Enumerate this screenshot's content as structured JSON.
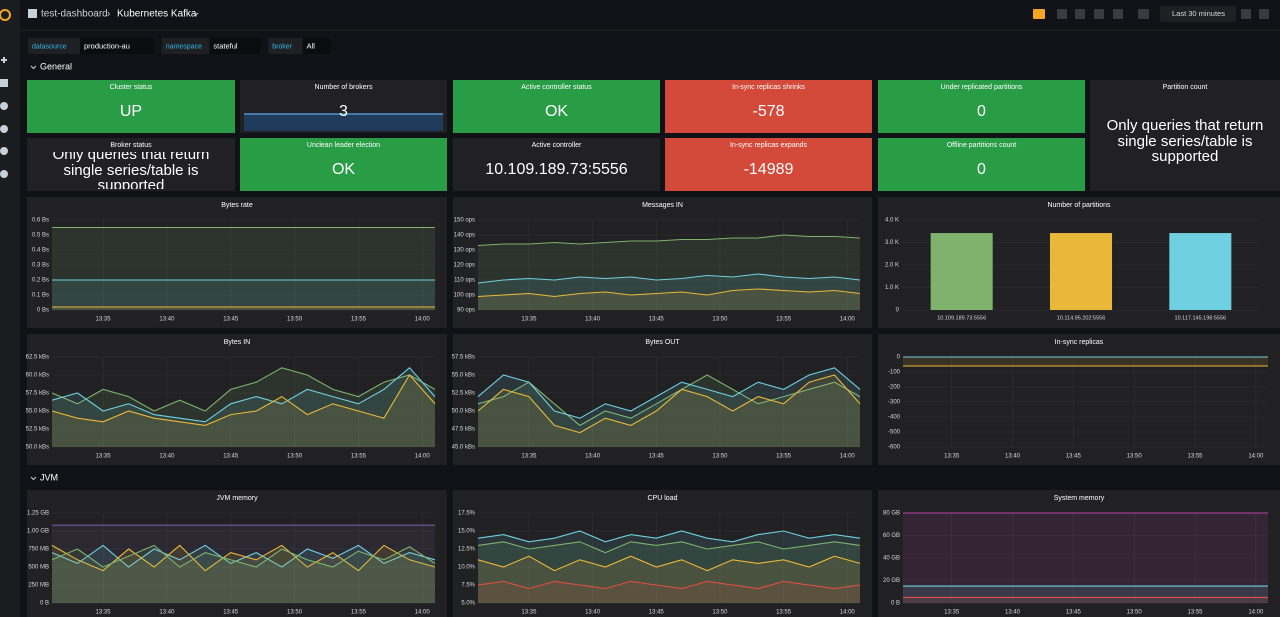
{
  "header": {
    "breadcrumb": "test-dashboard",
    "title": "Kubernetes Kafka",
    "time_range": "Last 30 minutes"
  },
  "variables": [
    {
      "label": "datasource",
      "value": "production-au"
    },
    {
      "label": "namespace",
      "value": "stateful"
    },
    {
      "label": "broker",
      "value": "All"
    }
  ],
  "rows": [
    "General",
    "JVM"
  ],
  "stat_panels": [
    {
      "title": "Cluster status",
      "value": "UP",
      "color": "#299c46"
    },
    {
      "title": "Number of brokers",
      "value": 3,
      "color": "#212124"
    },
    {
      "title": "Active controller status",
      "value": "OK",
      "color": "#299c46"
    },
    {
      "title": "In-sync replicas shrinks",
      "value": -578,
      "color": "#d44a3a"
    },
    {
      "title": "Under replicated partitions",
      "value": 0,
      "color": "#299c46"
    },
    {
      "title": "Partition count",
      "value": "Only queries that return single series/table is supported",
      "color": "#212124"
    },
    {
      "title": "Broker status",
      "value": "Only queries that return single series/table is supported",
      "color": "#212124"
    },
    {
      "title": "Unclean leader election",
      "value": "OK",
      "color": "#299c46"
    },
    {
      "title": "Active controller",
      "value": "10.109.189.73:5556",
      "color": "#212124"
    },
    {
      "title": "In-sync replicas expands",
      "value": -14989,
      "color": "#d44a3a"
    },
    {
      "title": "Offline partitions count",
      "value": 0,
      "color": "#299c46"
    }
  ],
  "chart_data": [
    {
      "type": "line",
      "title": "Bytes rate",
      "fill": true,
      "grid": true,
      "x": [
        "13:31",
        "13:33",
        "13:35",
        "13:37",
        "13:39",
        "13:41",
        "13:43",
        "13:45",
        "13:47",
        "13:49",
        "13:51",
        "13:53",
        "13:55",
        "13:57",
        "13:59",
        "14:01"
      ],
      "xlim": [
        "13:31",
        "14:01"
      ],
      "xticks": [
        "13:35",
        "13:40",
        "13:45",
        "13:50",
        "13:55",
        "14:00"
      ],
      "ylim": [
        0,
        0.6
      ],
      "yticks": [
        {
          "value": 0,
          "label": "0 Bs"
        },
        {
          "value": 0.1,
          "label": "0.1 Bs"
        },
        {
          "value": 0.2,
          "label": "0.2 Bs"
        },
        {
          "value": 0.3,
          "label": "0.3 Bs"
        },
        {
          "value": 0.4,
          "label": "0.4 Bs"
        },
        {
          "value": 0.5,
          "label": "0.5 Bs"
        },
        {
          "value": 0.6,
          "label": "0.6 Bs"
        }
      ],
      "series": [
        {
          "color": "#7eb26d",
          "values": [
            0.55,
            0.55,
            0.55,
            0.55,
            0.55,
            0.55,
            0.55,
            0.55,
            0.55,
            0.55,
            0.55,
            0.55,
            0.55,
            0.55,
            0.55,
            0.55
          ]
        },
        {
          "color": "#6ed0e0",
          "values": [
            0.2,
            0.2,
            0.2,
            0.2,
            0.2,
            0.2,
            0.2,
            0.2,
            0.2,
            0.2,
            0.2,
            0.2,
            0.2,
            0.2,
            0.2,
            0.2
          ]
        },
        {
          "color": "#eab839",
          "values": [
            0.02,
            0.02,
            0.02,
            0.02,
            0.02,
            0.02,
            0.02,
            0.02,
            0.02,
            0.02,
            0.02,
            0.02,
            0.02,
            0.02,
            0.02,
            0.02
          ]
        }
      ]
    },
    {
      "type": "line",
      "title": "Messages IN",
      "fill": true,
      "grid": true,
      "x": [
        "13:31",
        "13:33",
        "13:35",
        "13:37",
        "13:39",
        "13:41",
        "13:43",
        "13:45",
        "13:47",
        "13:49",
        "13:51",
        "13:53",
        "13:55",
        "13:57",
        "13:59",
        "14:01"
      ],
      "xlim": [
        "13:31",
        "14:01"
      ],
      "xticks": [
        "13:35",
        "13:40",
        "13:45",
        "13:50",
        "13:55",
        "14:00"
      ],
      "ylim": [
        90,
        150
      ],
      "yticks": [
        {
          "value": 90,
          "label": "90 ops"
        },
        {
          "value": 100,
          "label": "100 ops"
        },
        {
          "value": 110,
          "label": "110 ops"
        },
        {
          "value": 120,
          "label": "120 ops"
        },
        {
          "value": 130,
          "label": "130 ops"
        },
        {
          "value": 140,
          "label": "140 ops"
        },
        {
          "value": 150,
          "label": "150 ops"
        }
      ],
      "series": [
        {
          "color": "#7eb26d",
          "values": [
            133,
            134,
            134,
            135,
            134,
            135,
            136,
            136,
            137,
            137,
            138,
            138,
            140,
            139,
            139,
            138
          ]
        },
        {
          "color": "#6ed0e0",
          "values": [
            108,
            110,
            111,
            110,
            112,
            111,
            112,
            110,
            111,
            113,
            112,
            114,
            112,
            111,
            112,
            110
          ]
        },
        {
          "color": "#eab839",
          "values": [
            99,
            100,
            101,
            99,
            101,
            102,
            100,
            101,
            102,
            100,
            103,
            104,
            103,
            102,
            103,
            101
          ]
        }
      ]
    },
    {
      "type": "bar",
      "title": "Number of partitions",
      "grid": true,
      "categories": [
        "10.109.189.73:5556",
        "10.114.95.202:5556",
        "10.117.145.198:5556"
      ],
      "values": [
        3420,
        3420,
        3420
      ],
      "colors": [
        "#7eb26d",
        "#eab839",
        "#6ed0e0"
      ],
      "ylim": [
        0,
        4000
      ],
      "yticks": [
        0,
        {
          "value": 1000,
          "label": "1.0 K"
        },
        {
          "value": 2000,
          "label": "2.0 K"
        },
        {
          "value": 3000,
          "label": "3.0 K"
        },
        {
          "value": 4000,
          "label": "4.0 K"
        }
      ]
    },
    {
      "type": "line",
      "title": "Bytes IN",
      "fill": true,
      "grid": true,
      "x": [
        "13:31",
        "13:33",
        "13:35",
        "13:37",
        "13:39",
        "13:41",
        "13:43",
        "13:45",
        "13:47",
        "13:49",
        "13:51",
        "13:53",
        "13:55",
        "13:57",
        "13:59",
        "14:01"
      ],
      "xlim": [
        "13:31",
        "14:01"
      ],
      "xticks": [
        "13:35",
        "13:40",
        "13:45",
        "13:50",
        "13:55",
        "14:00"
      ],
      "ylim": [
        50,
        62.5
      ],
      "yticks": [
        {
          "value": 50,
          "label": "50.0 kBs"
        },
        {
          "value": 52.5,
          "label": "52.5 kBs"
        },
        {
          "value": 55,
          "label": "55.0 kBs"
        },
        {
          "value": 57.5,
          "label": "57.5 kBs"
        },
        {
          "value": 60,
          "label": "60.0 kBs"
        },
        {
          "value": 62.5,
          "label": "62.5 kBs"
        }
      ],
      "series": [
        {
          "color": "#7eb26d",
          "values": [
            57.5,
            56,
            58,
            57,
            55,
            56.5,
            55,
            58,
            59,
            61,
            60,
            58,
            57,
            59,
            60,
            58
          ]
        },
        {
          "color": "#6ed0e0",
          "values": [
            56.5,
            57.5,
            55,
            56,
            54.5,
            54,
            53.5,
            56,
            57,
            56,
            58,
            57,
            56,
            58,
            61,
            57
          ]
        },
        {
          "color": "#eab839",
          "values": [
            55,
            54,
            53.5,
            55,
            54,
            53.5,
            53,
            54.5,
            55,
            57,
            54.5,
            56,
            55,
            54,
            60,
            56
          ]
        }
      ]
    },
    {
      "type": "line",
      "title": "Bytes OUT",
      "fill": true,
      "grid": true,
      "x": [
        "13:31",
        "13:33",
        "13:35",
        "13:37",
        "13:39",
        "13:41",
        "13:43",
        "13:45",
        "13:47",
        "13:49",
        "13:51",
        "13:53",
        "13:55",
        "13:57",
        "13:59",
        "14:01"
      ],
      "xlim": [
        "13:31",
        "14:01"
      ],
      "xticks": [
        "13:35",
        "13:40",
        "13:45",
        "13:50",
        "13:55",
        "14:00"
      ],
      "ylim": [
        45,
        57.5
      ],
      "yticks": [
        {
          "value": 45,
          "label": "45.0 kBs"
        },
        {
          "value": 47.5,
          "label": "47.5 kBs"
        },
        {
          "value": 50,
          "label": "50.0 kBs"
        },
        {
          "value": 52.5,
          "label": "52.5 kBs"
        },
        {
          "value": 55,
          "label": "55.0 kBs"
        },
        {
          "value": 57.5,
          "label": "57.5 kBs"
        }
      ],
      "series": [
        {
          "color": "#7eb26d",
          "values": [
            51,
            52,
            54,
            51,
            48,
            50,
            49,
            51,
            53,
            55,
            53,
            51,
            52,
            53,
            54,
            52
          ]
        },
        {
          "color": "#6ed0e0",
          "values": [
            52,
            55,
            54,
            50,
            49,
            51,
            50,
            52,
            54,
            53,
            52,
            54,
            53,
            55,
            56,
            53
          ]
        },
        {
          "color": "#eab839",
          "values": [
            50,
            53,
            52,
            48,
            47,
            49,
            48,
            50,
            53,
            52,
            50,
            52,
            51,
            54,
            55,
            51
          ]
        }
      ]
    },
    {
      "type": "line",
      "title": "In-sync replicas",
      "fill": true,
      "grid": true,
      "x": [
        "13:31",
        "13:33",
        "13:35",
        "13:37",
        "13:39",
        "13:41",
        "13:43",
        "13:45",
        "13:47",
        "13:49",
        "13:51",
        "13:53",
        "13:55",
        "13:57",
        "13:59",
        "14:01"
      ],
      "xlim": [
        "13:31",
        "14:01"
      ],
      "xticks": [
        "13:35",
        "13:40",
        "13:45",
        "13:50",
        "13:55",
        "14:00"
      ],
      "ylim": [
        -600,
        0
      ],
      "yticks": [
        -600,
        -500,
        -400,
        -300,
        -200,
        -100,
        0
      ],
      "series": [
        {
          "color": "#6ed0e0",
          "values": [
            0,
            0,
            0,
            0,
            0,
            0,
            0,
            0,
            0,
            0,
            0,
            0,
            0,
            0,
            0,
            0
          ]
        },
        {
          "color": "#eab839",
          "values": [
            -60,
            -60,
            -60,
            -60,
            -60,
            -60,
            -60,
            -60,
            -60,
            -60,
            -60,
            -60,
            -60,
            -60,
            -60,
            -60
          ]
        }
      ]
    },
    {
      "type": "line",
      "title": "JVM memory",
      "fill": true,
      "grid": true,
      "x": [
        "13:31",
        "13:33",
        "13:35",
        "13:37",
        "13:39",
        "13:41",
        "13:43",
        "13:45",
        "13:47",
        "13:49",
        "13:51",
        "13:53",
        "13:55",
        "13:57",
        "13:59",
        "14:01"
      ],
      "xlim": [
        "13:31",
        "14:01"
      ],
      "xticks": [
        "13:35",
        "13:40",
        "13:45",
        "13:50",
        "13:55",
        "14:00"
      ],
      "ylim": [
        0,
        1.25
      ],
      "yticks": [
        {
          "value": 0,
          "label": "0 B"
        },
        {
          "value": 0.25,
          "label": "250 MB"
        },
        {
          "value": 0.5,
          "label": "500 MB"
        },
        {
          "value": 0.75,
          "label": "750 MB"
        },
        {
          "value": 1,
          "label": "1.00 GB"
        },
        {
          "value": 1.25,
          "label": "1.25 GB"
        }
      ],
      "series": [
        {
          "color": "#705da0",
          "values": [
            1.08,
            1.08,
            1.08,
            1.08,
            1.08,
            1.08,
            1.08,
            1.08,
            1.08,
            1.08,
            1.08,
            1.08,
            1.08,
            1.08,
            1.08,
            1.08
          ]
        },
        {
          "color": "#6ed0e0",
          "values": [
            0.7,
            0.55,
            0.8,
            0.5,
            0.75,
            0.6,
            0.8,
            0.55,
            0.7,
            0.5,
            0.75,
            0.62,
            0.8,
            0.55,
            0.7,
            0.6
          ]
        },
        {
          "color": "#eab839",
          "values": [
            0.8,
            0.6,
            0.45,
            0.75,
            0.5,
            0.8,
            0.45,
            0.7,
            0.6,
            0.8,
            0.5,
            0.7,
            0.45,
            0.8,
            0.6,
            0.5
          ]
        },
        {
          "color": "#7eb26d",
          "values": [
            0.6,
            0.75,
            0.5,
            0.65,
            0.8,
            0.5,
            0.7,
            0.6,
            0.5,
            0.75,
            0.6,
            0.5,
            0.72,
            0.6,
            0.78,
            0.55
          ]
        }
      ]
    },
    {
      "type": "line",
      "title": "CPU load",
      "fill": true,
      "grid": true,
      "x": [
        "13:31",
        "13:33",
        "13:35",
        "13:37",
        "13:39",
        "13:41",
        "13:43",
        "13:45",
        "13:47",
        "13:49",
        "13:51",
        "13:53",
        "13:55",
        "13:57",
        "13:59",
        "14:01"
      ],
      "xlim": [
        "13:31",
        "14:01"
      ],
      "xticks": [
        "13:35",
        "13:40",
        "13:45",
        "13:50",
        "13:55",
        "14:00"
      ],
      "ylim": [
        5,
        17.5
      ],
      "yticks": [
        {
          "value": 5,
          "label": "5.0%"
        },
        {
          "value": 7.5,
          "label": "7.5%"
        },
        {
          "value": 10,
          "label": "10.0%"
        },
        {
          "value": 12.5,
          "label": "12.5%"
        },
        {
          "value": 15,
          "label": "15.0%"
        },
        {
          "value": 17.5,
          "label": "17.5%"
        }
      ],
      "series": [
        {
          "color": "#6ed0e0",
          "values": [
            14,
            14.5,
            13.5,
            14,
            15,
            13.5,
            14.5,
            14,
            15,
            14,
            13.5,
            14.5,
            15,
            14,
            14.5,
            14
          ]
        },
        {
          "color": "#7eb26d",
          "values": [
            13,
            13.5,
            12.5,
            13,
            13.5,
            12,
            13.5,
            13,
            13.5,
            12.5,
            13,
            13.5,
            12.5,
            13,
            13.5,
            13
          ]
        },
        {
          "color": "#eab839",
          "values": [
            11,
            10,
            11.5,
            9.5,
            11,
            10,
            11.5,
            10,
            11,
            9.5,
            11,
            10.5,
            11,
            10,
            11.5,
            10.5
          ]
        },
        {
          "color": "#e24d42",
          "values": [
            7.5,
            8,
            7,
            8,
            7.5,
            7,
            8,
            7.5,
            7,
            8,
            7.5,
            7,
            8,
            7.5,
            7,
            7.5
          ]
        }
      ]
    },
    {
      "type": "line",
      "title": "System memory",
      "fill": true,
      "grid": true,
      "x": [
        "13:31",
        "13:33",
        "13:35",
        "13:37",
        "13:39",
        "13:41",
        "13:43",
        "13:45",
        "13:47",
        "13:49",
        "13:51",
        "13:53",
        "13:55",
        "13:57",
        "13:59",
        "14:01"
      ],
      "xlim": [
        "13:31",
        "14:01"
      ],
      "xticks": [
        "13:35",
        "13:40",
        "13:45",
        "13:50",
        "13:55",
        "14:00"
      ],
      "ylim": [
        0,
        80
      ],
      "yticks": [
        {
          "value": 0,
          "label": "0 B"
        },
        {
          "value": 20,
          "label": "20 GB"
        },
        {
          "value": 40,
          "label": "40 GB"
        },
        {
          "value": 60,
          "label": "60 GB"
        },
        {
          "value": 80,
          "label": "80 GB"
        }
      ],
      "series": [
        {
          "color": "#ba43a9",
          "values": [
            80,
            80,
            80,
            80,
            80,
            80,
            80,
            80,
            80,
            80,
            80,
            80,
            80,
            80,
            80,
            80
          ]
        },
        {
          "color": "#6ed0e0",
          "values": [
            15,
            15,
            15,
            15,
            15,
            15,
            15,
            15,
            15,
            15,
            15,
            15,
            15,
            15,
            15,
            15
          ]
        },
        {
          "color": "#e24d42",
          "values": [
            5,
            5,
            5,
            5,
            5,
            5,
            5,
            5,
            5,
            5,
            5,
            5,
            5,
            5,
            5,
            5
          ]
        }
      ]
    }
  ]
}
